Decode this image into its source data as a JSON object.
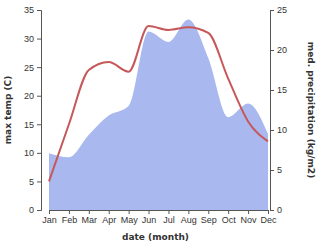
{
  "chart_data": {
    "type": "line",
    "x_label": "date (month)",
    "y_label": "max temp (C)",
    "y2_label": "med. precipitation (kg/m2)",
    "categories": [
      "Jan",
      "Feb",
      "Mar",
      "Apr",
      "May",
      "Jun",
      "Jul",
      "Aug",
      "Sep",
      "Oct",
      "Nov",
      "Dec"
    ],
    "series": [
      {
        "type": "area",
        "axis": "y2",
        "color": "#aab8f0",
        "values": [
          7.1,
          6.6,
          9.4,
          11.8,
          13.0,
          22.3,
          21.0,
          23.8,
          19.0,
          11.6,
          13.3,
          9.5
        ]
      },
      {
        "type": "line",
        "color": "#c6585a",
        "values": [
          5.0,
          15.0,
          24.5,
          25.9,
          24.2,
          32.2,
          31.5,
          32.0,
          31.0,
          23.0,
          15.5,
          12.0
        ]
      }
    ],
    "ylim": [
      0,
      35
    ],
    "yticks": [
      0,
      5,
      10,
      15,
      20,
      25,
      30,
      35
    ],
    "y2lim": [
      0,
      25
    ],
    "y2ticks": [
      0,
      5,
      10,
      15,
      20,
      25
    ]
  }
}
